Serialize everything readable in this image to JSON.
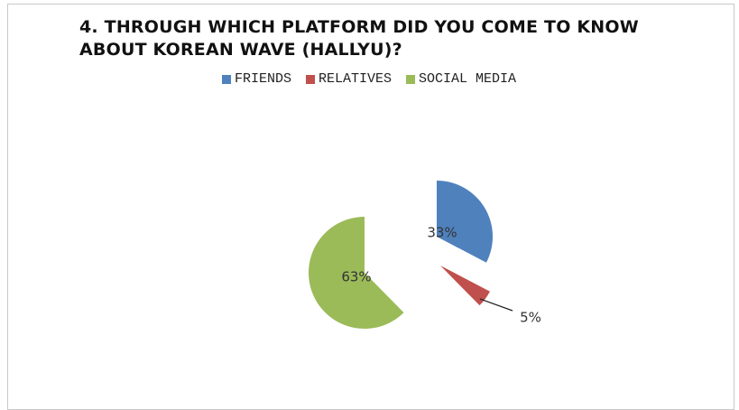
{
  "chart_data": {
    "type": "pie",
    "title": "4. THROUGH WHICH PLATFORM DID YOU COME TO KNOW ABOUT KOREAN WAVE (HALLYU)?",
    "legend_position": "top",
    "categories": [
      "FRIENDS",
      "RELATIVES",
      "SOCIAL MEDIA"
    ],
    "values": [
      33,
      5,
      63
    ],
    "labels": [
      "33%",
      "5%",
      "63%"
    ],
    "colors": [
      "#4f81bd",
      "#c0504d",
      "#9bbb59"
    ]
  }
}
